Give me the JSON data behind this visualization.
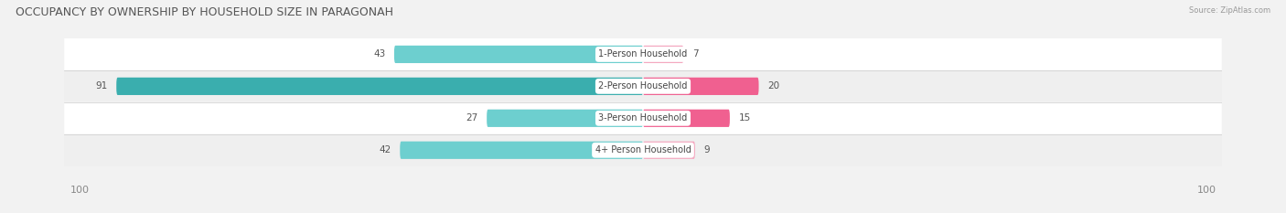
{
  "title": "OCCUPANCY BY OWNERSHIP BY HOUSEHOLD SIZE IN PARAGONAH",
  "source": "Source: ZipAtlas.com",
  "categories": [
    "1-Person Household",
    "2-Person Household",
    "3-Person Household",
    "4+ Person Household"
  ],
  "owner_values": [
    43,
    91,
    27,
    42
  ],
  "renter_values": [
    7,
    20,
    15,
    9
  ],
  "max_value": 100,
  "owner_colors": [
    "#6DCFCF",
    "#3AAEAE",
    "#6DCFCF",
    "#6DCFCF"
  ],
  "renter_colors": [
    "#F4A8C0",
    "#F06090",
    "#F06090",
    "#F4A8C0"
  ],
  "bg_color": "#F2F2F2",
  "row_bg_colors": [
    "#FFFFFF",
    "#EFEFEF",
    "#FFFFFF",
    "#EFEFEF"
  ],
  "title_fontsize": 9,
  "label_fontsize": 7.5,
  "axis_label_fontsize": 8,
  "legend_fontsize": 8
}
